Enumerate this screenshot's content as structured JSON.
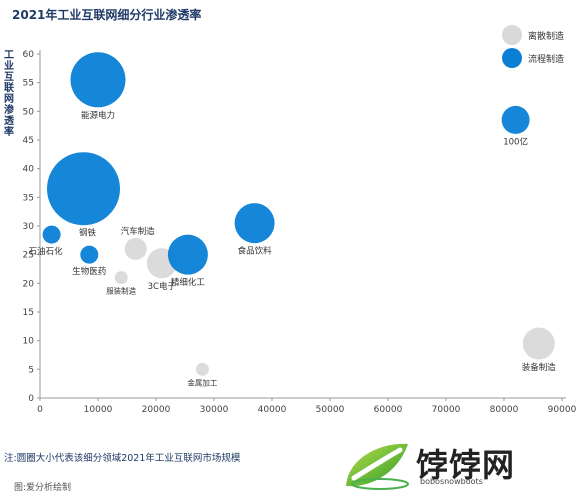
{
  "title": "2021年工业互联网细分行业渗透率",
  "footnote": "注:圆圈大小代表该细分领域2021年工业互联网市场规模",
  "source": "图:爱分析绘制",
  "watermark": {
    "text": "饽饽网",
    "sub": "bobosnowboots"
  },
  "colors": {
    "discrete": "#d9d9d9",
    "process": "#0a7fd6",
    "axis": "#999999"
  },
  "chart_data": {
    "type": "scatter",
    "ylabel": "工业互联网渗透率",
    "xlabel": "",
    "xlim": [
      0,
      90000
    ],
    "ylim": [
      0,
      60
    ],
    "xticks": [
      "0",
      "10000",
      "20000",
      "30000",
      "40000",
      "50000",
      "60000",
      "70000",
      "80000",
      "90000"
    ],
    "yticks": [
      "0",
      "5",
      "10",
      "15",
      "20",
      "25",
      "30",
      "35",
      "40",
      "45",
      "50",
      "55",
      "60"
    ],
    "grid": false,
    "legend_position": "top-right",
    "series": [
      {
        "name": "离散制造",
        "color": "#d9d9d9",
        "points": [
          {
            "label": "汽车制造",
            "x": 16500,
            "y": 26,
            "size": 22
          },
          {
            "label": "3C电子",
            "x": 21000,
            "y": 23.5,
            "size": 30
          },
          {
            "label": "服装制造",
            "x": 14000,
            "y": 21,
            "size": 13
          },
          {
            "label": "金属加工",
            "x": 28000,
            "y": 5,
            "size": 13
          },
          {
            "label": "装备制造",
            "x": 86000,
            "y": 9.5,
            "size": 32
          }
        ]
      },
      {
        "name": "流程制造",
        "color": "#0a7fd6",
        "points": [
          {
            "label": "能源电力",
            "x": 10000,
            "y": 55.5,
            "size": 55
          },
          {
            "label": "钢铁",
            "x": 7500,
            "y": 36.5,
            "size": 73
          },
          {
            "label": "石油石化",
            "x": 2000,
            "y": 28.5,
            "size": 18
          },
          {
            "label": "生物医药",
            "x": 8500,
            "y": 25,
            "size": 18
          },
          {
            "label": "精细化工",
            "x": 25500,
            "y": 25,
            "size": 40
          },
          {
            "label": "食品饮料",
            "x": 37000,
            "y": 30.5,
            "size": 40
          },
          {
            "label": "100亿",
            "x": 82000,
            "y": 48.5,
            "size": 28
          }
        ]
      }
    ]
  }
}
